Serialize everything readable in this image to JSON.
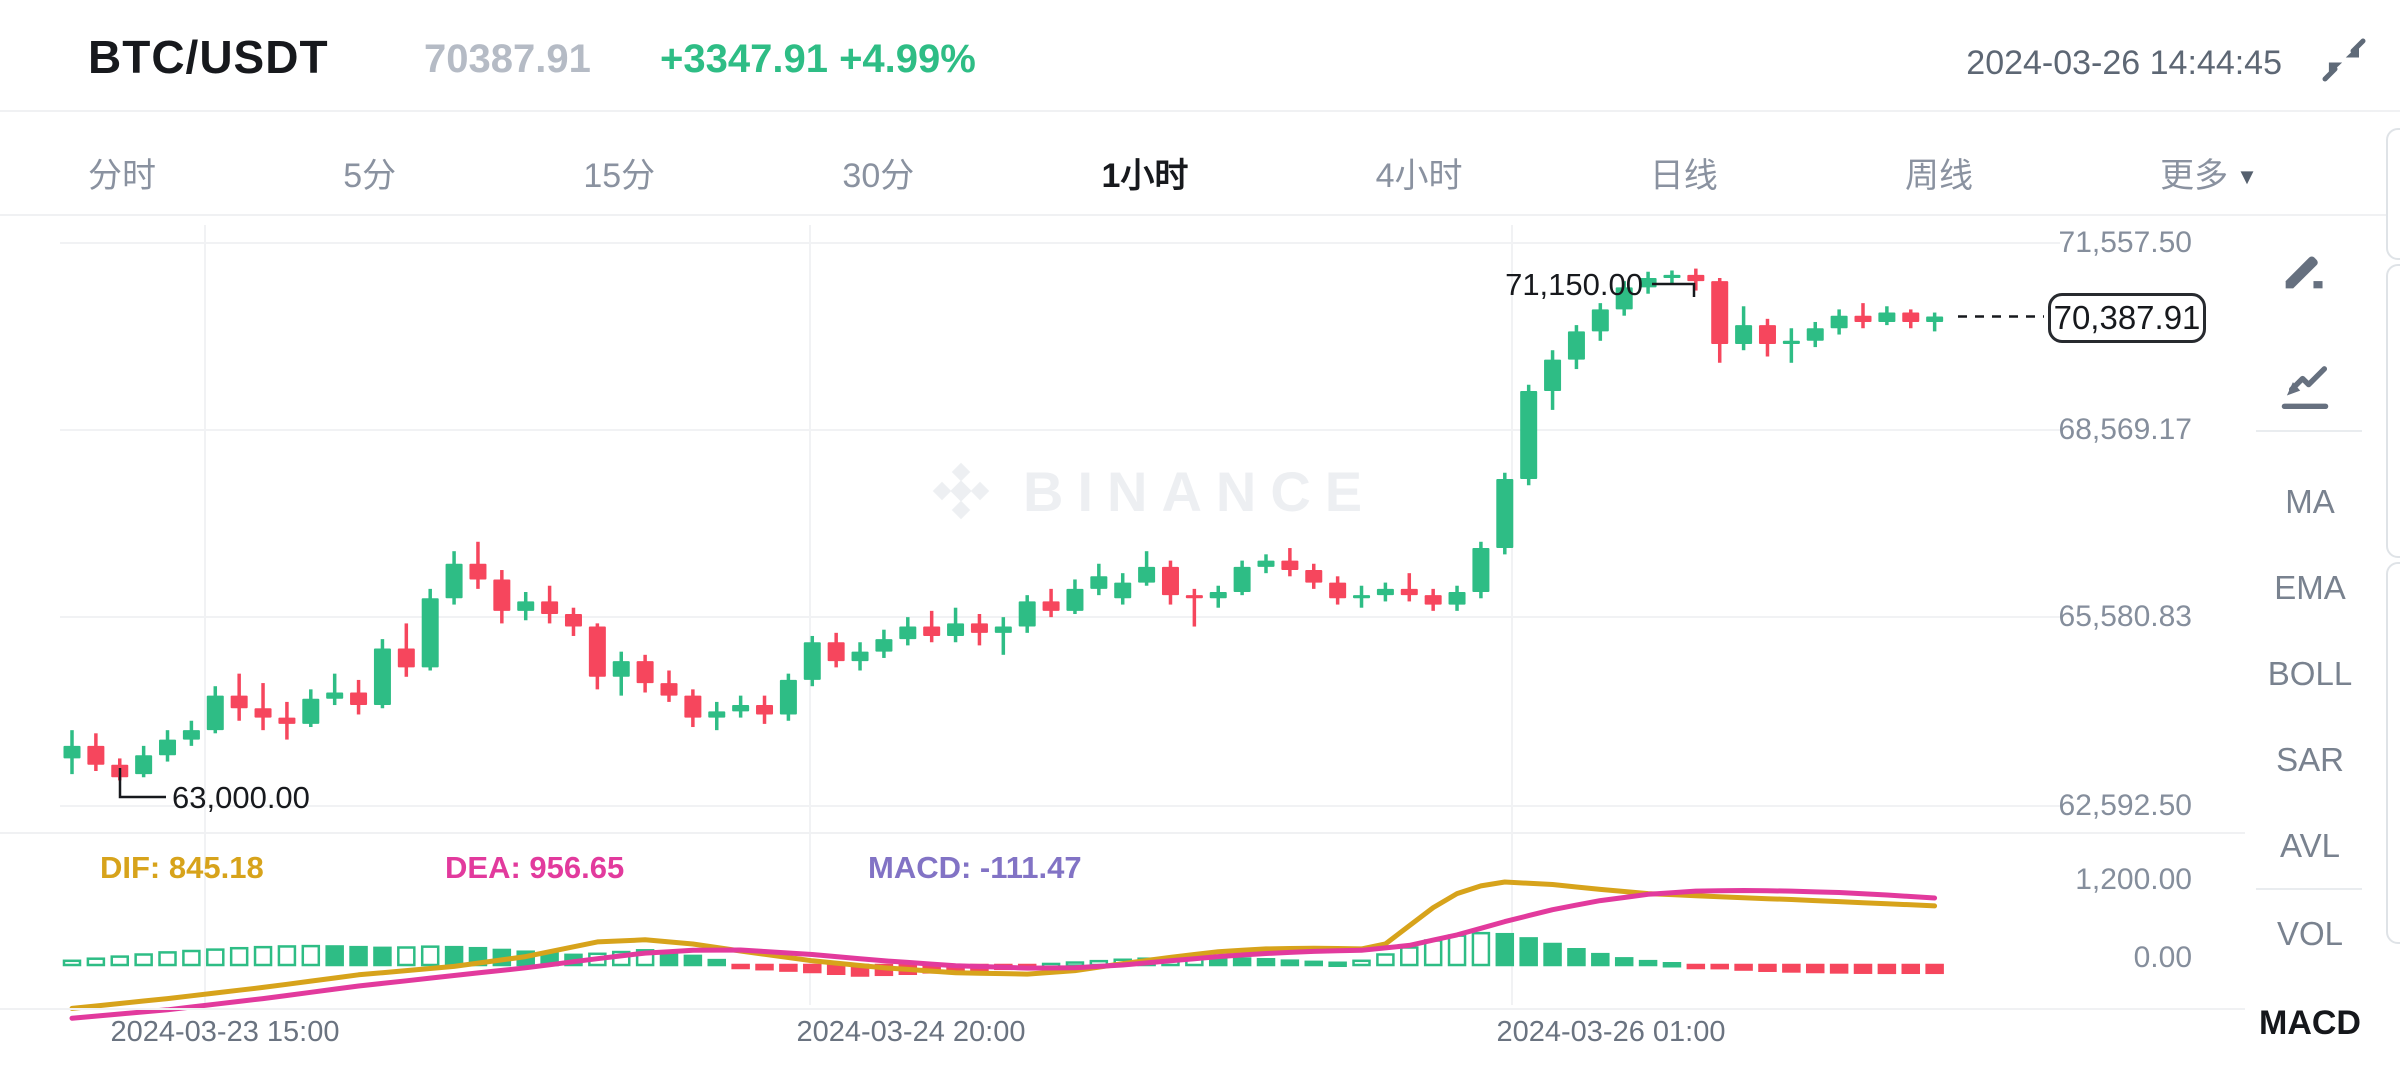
{
  "header": {
    "symbol": "BTC/USDT",
    "last_price": "70387.91",
    "change_abs": "+3347.91",
    "change_pct": "+4.99%",
    "change_text": "+3347.91  +4.99%",
    "datetime": "2024-03-26 14:44:45"
  },
  "tabs": {
    "items": [
      "分时",
      "5分",
      "15分",
      "30分",
      "1小时",
      "4小时",
      "日线",
      "周线"
    ],
    "active": "1小时",
    "more_label": "更多"
  },
  "watermark": {
    "text": "BINANCE"
  },
  "sidebar": {
    "indicators": [
      "MA",
      "EMA",
      "BOLL",
      "SAR",
      "AVL",
      "VOL",
      "MACD"
    ],
    "active": "MACD"
  },
  "colors": {
    "up": "#2ebd85",
    "down": "#f6465d",
    "dif_line": "#d7a31b",
    "dea_line": "#e23a9d",
    "macd_text": "#8273c5",
    "grid": "#f1f2f4",
    "ink": "#17191d"
  },
  "chart_data": {
    "type": "candlestick",
    "title": "BTC/USDT 1小时 K线",
    "price_axis_labels": [
      "71,557.50",
      "68,569.17",
      "65,580.83",
      "62,592.50"
    ],
    "price_axis_values": [
      71557.5,
      68569.17,
      65580.83,
      62592.5
    ],
    "x_axis_labels": [
      "2024-03-23 15:00",
      "2024-03-24 20:00",
      "2024-03-26 01:00"
    ],
    "annotations": {
      "high_label": "71,150.00",
      "high_value": 71150.0,
      "low_label": "63,000.00",
      "low_value": 63000.0,
      "current_label": "70,387.91",
      "current_value": 70387.91
    },
    "candles_ohlc": [
      [
        63350,
        63800,
        63100,
        63550
      ],
      [
        63550,
        63750,
        63150,
        63250
      ],
      [
        63250,
        63350,
        63000,
        63050
      ],
      [
        63100,
        63550,
        63050,
        63400
      ],
      [
        63400,
        63800,
        63300,
        63650
      ],
      [
        63650,
        63950,
        63550,
        63800
      ],
      [
        63800,
        64500,
        63750,
        64350
      ],
      [
        64350,
        64700,
        63950,
        64150
      ],
      [
        64150,
        64550,
        63800,
        64000
      ],
      [
        64000,
        64250,
        63650,
        63900
      ],
      [
        63900,
        64450,
        63850,
        64300
      ],
      [
        64300,
        64700,
        64200,
        64400
      ],
      [
        64400,
        64600,
        64050,
        64200
      ],
      [
        64200,
        65250,
        64150,
        65100
      ],
      [
        65100,
        65500,
        64650,
        64800
      ],
      [
        64800,
        66050,
        64750,
        65900
      ],
      [
        65900,
        66650,
        65800,
        66450
      ],
      [
        66450,
        66800,
        66050,
        66200
      ],
      [
        66200,
        66350,
        65500,
        65700
      ],
      [
        65700,
        66000,
        65550,
        65850
      ],
      [
        65850,
        66100,
        65500,
        65650
      ],
      [
        65650,
        65750,
        65300,
        65450
      ],
      [
        65450,
        65500,
        64450,
        64650
      ],
      [
        64650,
        65050,
        64350,
        64900
      ],
      [
        64900,
        65000,
        64400,
        64550
      ],
      [
        64550,
        64750,
        64250,
        64350
      ],
      [
        64350,
        64450,
        63850,
        64000
      ],
      [
        64000,
        64250,
        63800,
        64100
      ],
      [
        64100,
        64350,
        64000,
        64200
      ],
      [
        64200,
        64350,
        63900,
        64050
      ],
      [
        64050,
        64700,
        63950,
        64600
      ],
      [
        64600,
        65300,
        64500,
        65200
      ],
      [
        65200,
        65350,
        64800,
        64900
      ],
      [
        64900,
        65200,
        64750,
        65050
      ],
      [
        65050,
        65400,
        64950,
        65250
      ],
      [
        65250,
        65600,
        65150,
        65450
      ],
      [
        65450,
        65700,
        65200,
        65300
      ],
      [
        65300,
        65750,
        65200,
        65500
      ],
      [
        65500,
        65650,
        65150,
        65350
      ],
      [
        65350,
        65600,
        65000,
        65450
      ],
      [
        65450,
        65950,
        65350,
        65850
      ],
      [
        65850,
        66050,
        65600,
        65700
      ],
      [
        65700,
        66200,
        65650,
        66050
      ],
      [
        66050,
        66450,
        65950,
        66250
      ],
      [
        65900,
        66300,
        65800,
        66150
      ],
      [
        66150,
        66650,
        66100,
        66400
      ],
      [
        66400,
        66500,
        65800,
        65950
      ],
      [
        65950,
        66050,
        65450,
        65900
      ],
      [
        65900,
        66100,
        65750,
        66000
      ],
      [
        66000,
        66500,
        65950,
        66400
      ],
      [
        66400,
        66600,
        66300,
        66500
      ],
      [
        66500,
        66700,
        66250,
        66350
      ],
      [
        66350,
        66450,
        66050,
        66150
      ],
      [
        66150,
        66250,
        65800,
        65900
      ],
      [
        65900,
        66100,
        65750,
        65950
      ],
      [
        65950,
        66150,
        65850,
        66050
      ],
      [
        66050,
        66300,
        65850,
        65950
      ],
      [
        65950,
        66050,
        65700,
        65800
      ],
      [
        65800,
        66100,
        65700,
        66000
      ],
      [
        66000,
        66800,
        65900,
        66700
      ],
      [
        66700,
        67900,
        66600,
        67800
      ],
      [
        67800,
        69300,
        67700,
        69200
      ],
      [
        69200,
        69850,
        68900,
        69700
      ],
      [
        69700,
        70250,
        69550,
        70150
      ],
      [
        70150,
        70600,
        70000,
        70500
      ],
      [
        70500,
        70950,
        70400,
        70850
      ],
      [
        70850,
        71100,
        70750,
        71000
      ],
      [
        71000,
        71120,
        70900,
        71050
      ],
      [
        71050,
        71150,
        70800,
        70950
      ],
      [
        70950,
        71000,
        69650,
        69950
      ],
      [
        69950,
        70550,
        69850,
        70250
      ],
      [
        70250,
        70350,
        69750,
        69950
      ],
      [
        69950,
        70200,
        69650,
        70000
      ],
      [
        70000,
        70300,
        69900,
        70200
      ],
      [
        70200,
        70500,
        70100,
        70400
      ],
      [
        70400,
        70600,
        70200,
        70300
      ],
      [
        70300,
        70550,
        70250,
        70450
      ],
      [
        70450,
        70500,
        70200,
        70300
      ],
      [
        70300,
        70450,
        70150,
        70387.91
      ]
    ],
    "macd": {
      "dif_label": "DIF: 845.18",
      "dif": 845.18,
      "dea_label": "DEA: 956.65",
      "dea": 956.65,
      "macd_label": "MACD: -111.47",
      "macd": -111.47,
      "axis_labels": [
        "1,200.00",
        "0.00"
      ],
      "axis_values": [
        1200.0,
        0.0
      ],
      "histogram": [
        60,
        90,
        120,
        150,
        180,
        200,
        220,
        240,
        255,
        265,
        270,
        265,
        255,
        245,
        250,
        262,
        255,
        240,
        215,
        190,
        165,
        145,
        160,
        185,
        210,
        180,
        130,
        70,
        -40,
        -60,
        -80,
        -100,
        -125,
        -150,
        -140,
        -125,
        -105,
        -90,
        -75,
        -55,
        -35,
        15,
        35,
        55,
        75,
        90,
        100,
        110,
        100,
        92,
        82,
        62,
        45,
        32,
        60,
        150,
        250,
        350,
        420,
        455,
        440,
        380,
        300,
        225,
        155,
        95,
        55,
        25,
        -15,
        -45,
        -65,
        -82,
        -92,
        -100,
        -106,
        -110,
        -112,
        -111,
        -111.47
      ],
      "dif_points": [
        [
          0,
          -620
        ],
        [
          4,
          -480
        ],
        [
          8,
          -320
        ],
        [
          12,
          -140
        ],
        [
          16,
          -20
        ],
        [
          19,
          120
        ],
        [
          22,
          330
        ],
        [
          24,
          360
        ],
        [
          26,
          300
        ],
        [
          28,
          200
        ],
        [
          31,
          60
        ],
        [
          34,
          -40
        ],
        [
          37,
          -110
        ],
        [
          40,
          -130
        ],
        [
          42,
          -80
        ],
        [
          44,
          20
        ],
        [
          46,
          110
        ],
        [
          48,
          190
        ],
        [
          50,
          230
        ],
        [
          52,
          240
        ],
        [
          54,
          230
        ],
        [
          55,
          300
        ],
        [
          56,
          560
        ],
        [
          57,
          820
        ],
        [
          58,
          1020
        ],
        [
          59,
          1130
        ],
        [
          60,
          1185
        ],
        [
          62,
          1150
        ],
        [
          64,
          1080
        ],
        [
          66,
          1020
        ],
        [
          68,
          990
        ],
        [
          70,
          960
        ],
        [
          72,
          935
        ],
        [
          74,
          905
        ],
        [
          76,
          875
        ],
        [
          78,
          845
        ]
      ],
      "dea_points": [
        [
          0,
          -760
        ],
        [
          4,
          -640
        ],
        [
          8,
          -480
        ],
        [
          12,
          -300
        ],
        [
          16,
          -150
        ],
        [
          19,
          -40
        ],
        [
          22,
          90
        ],
        [
          24,
          170
        ],
        [
          26,
          210
        ],
        [
          28,
          215
        ],
        [
          31,
          150
        ],
        [
          34,
          60
        ],
        [
          37,
          -10
        ],
        [
          40,
          -45
        ],
        [
          42,
          -40
        ],
        [
          44,
          0
        ],
        [
          46,
          60
        ],
        [
          48,
          120
        ],
        [
          50,
          165
        ],
        [
          52,
          195
        ],
        [
          54,
          210
        ],
        [
          56,
          280
        ],
        [
          58,
          430
        ],
        [
          60,
          620
        ],
        [
          62,
          790
        ],
        [
          64,
          920
        ],
        [
          66,
          1010
        ],
        [
          68,
          1055
        ],
        [
          70,
          1065
        ],
        [
          72,
          1055
        ],
        [
          74,
          1035
        ],
        [
          76,
          1000
        ],
        [
          78,
          956.65
        ]
      ]
    }
  }
}
